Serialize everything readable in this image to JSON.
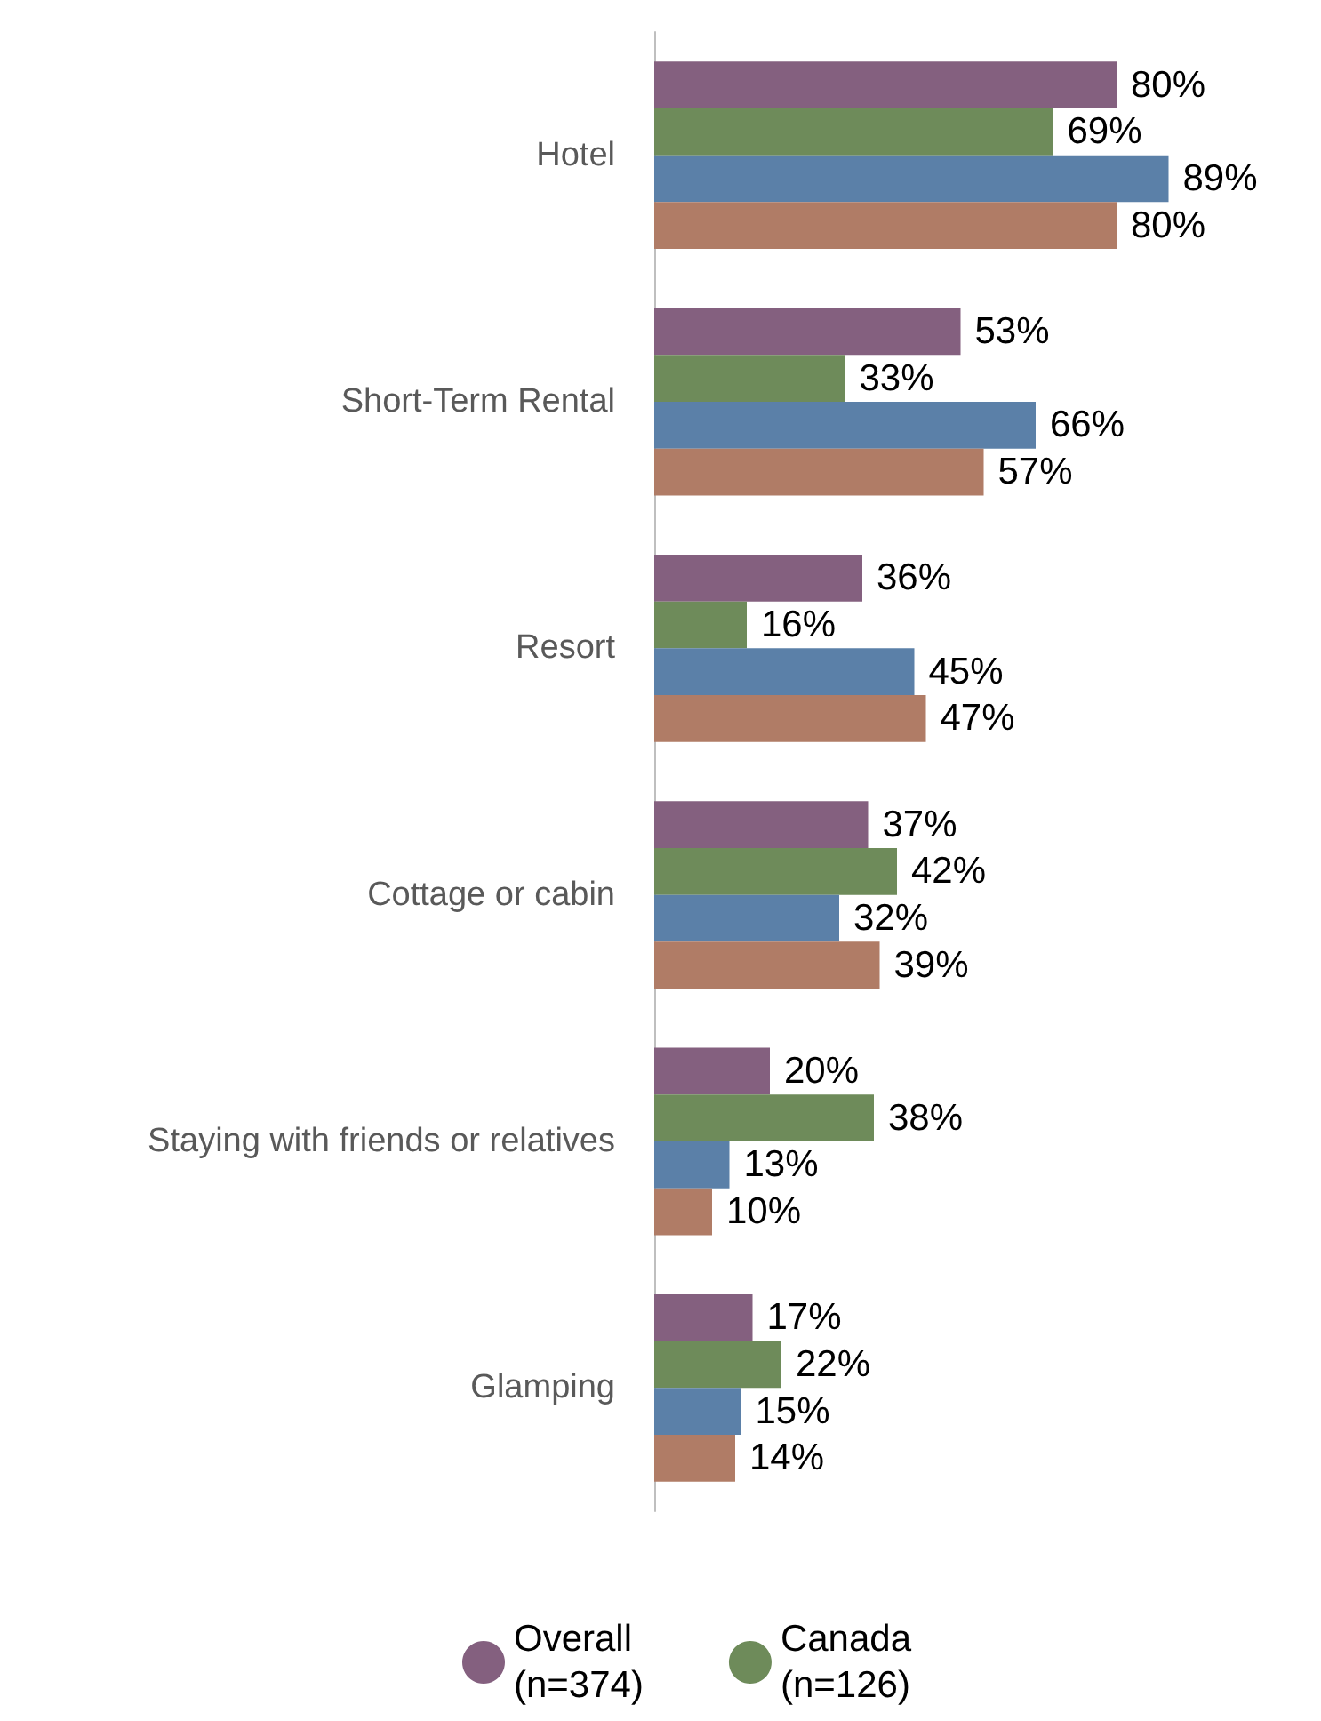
{
  "chart_data": {
    "type": "bar",
    "orientation": "horizontal",
    "categories": [
      "Hotel",
      "Short-Term Rental",
      "Resort",
      "Cottage or cabin",
      "Staying with friends or relatives",
      "Glamping"
    ],
    "series": [
      {
        "name": "Overall\n(n=374)",
        "color": "#84607f",
        "values": [
          80,
          53,
          36,
          37,
          20,
          17
        ],
        "value_labels": [
          "80%",
          "53%",
          "36%",
          "37%",
          "20%",
          "17%"
        ]
      },
      {
        "name": "Canada\n(n=126)",
        "color": "#6e8b5a",
        "values": [
          69,
          33,
          16,
          42,
          38,
          22
        ],
        "value_labels": [
          "69%",
          "33%",
          "16%",
          "42%",
          "38%",
          "22%"
        ]
      },
      {
        "color": "#5b80a8",
        "values": [
          89,
          66,
          45,
          32,
          13,
          15
        ],
        "value_labels": [
          "89%",
          "66%",
          "45%",
          "32%",
          "13%",
          "15%"
        ]
      },
      {
        "color": "#b07c66",
        "values": [
          80,
          57,
          47,
          39,
          10,
          14
        ],
        "value_labels": [
          "80%",
          "57%",
          "47%",
          "39%",
          "10%",
          "14%"
        ]
      }
    ],
    "legend": "bottom"
  }
}
